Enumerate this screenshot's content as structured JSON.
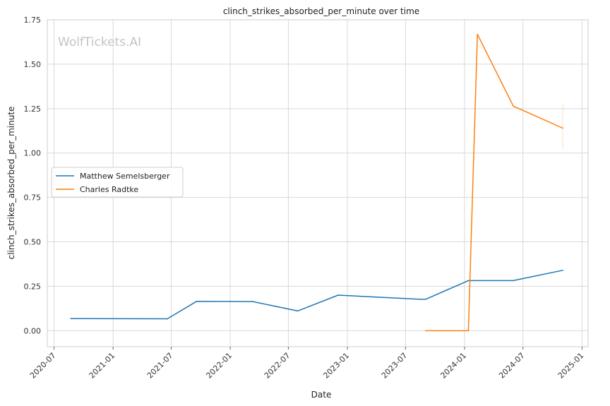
{
  "chart_data": {
    "type": "line",
    "title": "clinch_strikes_absorbed_per_minute over time",
    "xlabel": "Date",
    "ylabel": "clinch_strikes_absorbed_per_minute",
    "watermark": "WolfTickets.AI",
    "grid": true,
    "legend_position": "center-left",
    "xlim": [
      "2020-06-10",
      "2025-01-20"
    ],
    "ylim": [
      -0.09,
      1.75
    ],
    "x_ticks": [
      "2020-07-01",
      "2021-01-01",
      "2021-07-01",
      "2022-01-01",
      "2022-07-01",
      "2023-01-01",
      "2023-07-01",
      "2024-01-01",
      "2024-07-01",
      "2025-01-01"
    ],
    "x_tick_labels": [
      "2020-07",
      "2021-01",
      "2021-07",
      "2022-01",
      "2022-07",
      "2023-01",
      "2023-07",
      "2024-01",
      "2024-07",
      "2025-01"
    ],
    "y_ticks": [
      0.0,
      0.25,
      0.5,
      0.75,
      1.0,
      1.25,
      1.5,
      1.75
    ],
    "y_tick_labels": [
      "0.00",
      "0.25",
      "0.50",
      "0.75",
      "1.00",
      "1.25",
      "1.50",
      "1.75"
    ],
    "series": [
      {
        "name": "Matthew Semelsberger",
        "color": "#1f77b4",
        "points": [
          {
            "x": "2020-08-22",
            "y": 0.068
          },
          {
            "x": "2021-06-19",
            "y": 0.067
          },
          {
            "x": "2021-09-18",
            "y": 0.165
          },
          {
            "x": "2022-03-12",
            "y": 0.164
          },
          {
            "x": "2022-07-30",
            "y": 0.111
          },
          {
            "x": "2022-12-03",
            "y": 0.2
          },
          {
            "x": "2023-08-12",
            "y": 0.177
          },
          {
            "x": "2023-09-02",
            "y": 0.177
          },
          {
            "x": "2024-01-13",
            "y": 0.282
          },
          {
            "x": "2024-06-01",
            "y": 0.282
          },
          {
            "x": "2024-11-02",
            "y": 0.34
          }
        ]
      },
      {
        "name": "Charles Radtke",
        "color": "#ff7f0e",
        "points": [
          {
            "x": "2023-09-02",
            "y": 0.0
          },
          {
            "x": "2024-01-13",
            "y": 0.0
          },
          {
            "x": "2024-02-10",
            "y": 1.668
          },
          {
            "x": "2024-06-01",
            "y": 1.264
          },
          {
            "x": "2024-11-02",
            "y": 1.14
          }
        ],
        "band": {
          "x": "2024-11-02",
          "low": 1.02,
          "high": 1.28
        }
      }
    ]
  }
}
